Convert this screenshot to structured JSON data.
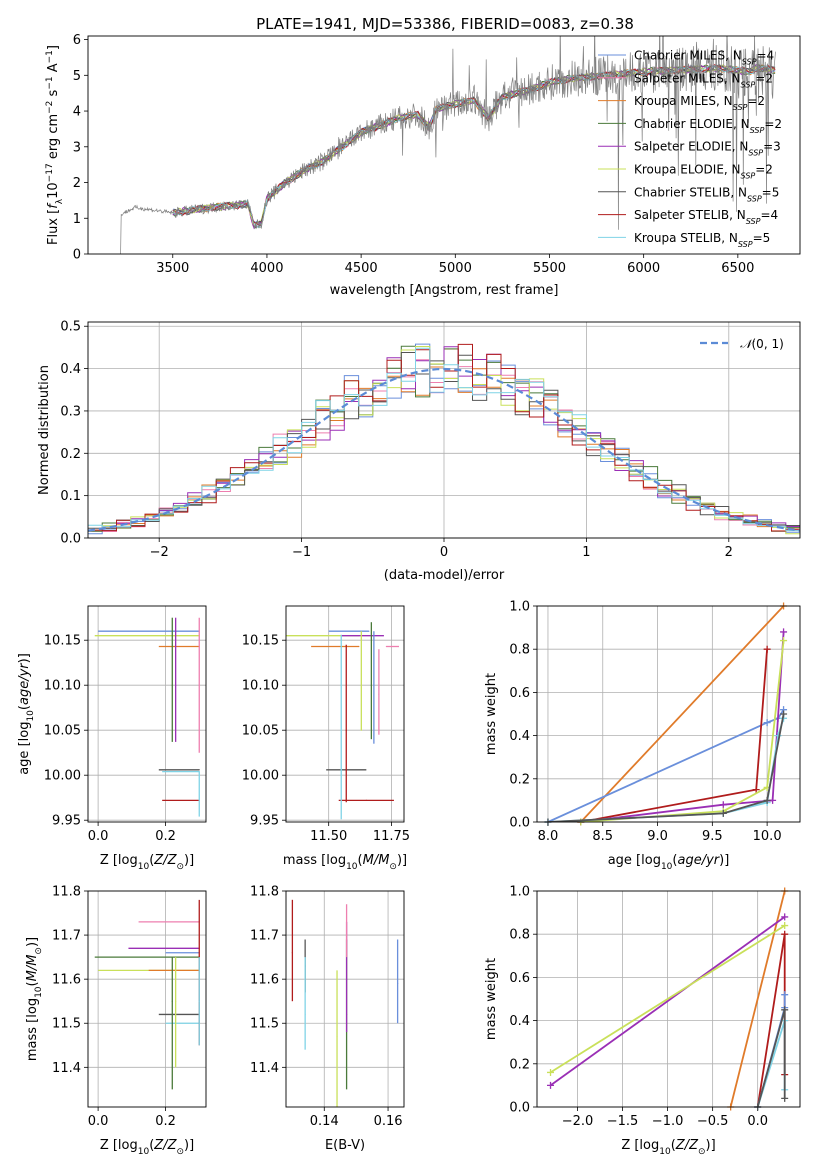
{
  "title": "PLATE=1941, MJD=53386, FIBERID=0083, z=0.38",
  "colors": {
    "Chabrier MILES": "#6a8fdb",
    "Salpeter MILES": "#ee7faf",
    "Kroupa MILES": "#e07b2a",
    "Chabrier ELODIE": "#4a7a3a",
    "Salpeter ELODIE": "#9a2fb5",
    "Kroupa ELODIE": "#c9e05a",
    "Chabrier STELIB": "#555555",
    "Salpeter STELIB": "#b01c1c",
    "Kroupa STELIB": "#7fd3e6",
    "data": "#808080",
    "normal": "#5b8bd6"
  },
  "chart_data": [
    {
      "type": "line",
      "id": "spectrum",
      "xlabel": "wavelength [Angstrom, rest frame]",
      "xlim": [
        3050,
        6830
      ],
      "ylim": [
        0,
        6.1
      ],
      "xticks": [
        3500,
        4000,
        4500,
        5000,
        5500,
        6000,
        6500
      ],
      "yticks": [
        0,
        1,
        2,
        3,
        4,
        5,
        6
      ],
      "legend": [
        {
          "name": "Chabrier MILES",
          "n": "4"
        },
        {
          "name": "Salpeter MILES",
          "n": "2"
        },
        {
          "name": "Kroupa MILES",
          "n": "2"
        },
        {
          "name": "Chabrier ELODIE",
          "n": "2"
        },
        {
          "name": "Salpeter ELODIE",
          "n": "3"
        },
        {
          "name": "Kroupa ELODIE",
          "n": "2"
        },
        {
          "name": "Chabrier STELIB",
          "n": "5"
        },
        {
          "name": "Salpeter STELIB",
          "n": "4"
        },
        {
          "name": "Kroupa STELIB",
          "n": "5"
        }
      ],
      "legend_position": "top-right",
      "model_continuum": [
        [
          3220,
          1.1
        ],
        [
          3300,
          1.3
        ],
        [
          3500,
          1.15
        ],
        [
          3700,
          1.3
        ],
        [
          3900,
          1.4
        ],
        [
          3930,
          0.8
        ],
        [
          3970,
          0.85
        ],
        [
          4000,
          1.55
        ],
        [
          4100,
          2.0
        ],
        [
          4200,
          2.35
        ],
        [
          4300,
          2.6
        ],
        [
          4400,
          3.0
        ],
        [
          4500,
          3.4
        ],
        [
          4600,
          3.6
        ],
        [
          4700,
          3.8
        ],
        [
          4800,
          3.9
        ],
        [
          4860,
          3.55
        ],
        [
          4900,
          4.05
        ],
        [
          5000,
          4.2
        ],
        [
          5100,
          4.3
        ],
        [
          5175,
          3.8
        ],
        [
          5250,
          4.4
        ],
        [
          5400,
          4.6
        ],
        [
          5500,
          4.8
        ],
        [
          5600,
          4.9
        ],
        [
          5800,
          5.0
        ],
        [
          5900,
          5.05
        ],
        [
          6000,
          5.1
        ],
        [
          6200,
          5.15
        ],
        [
          6400,
          5.2
        ],
        [
          6560,
          5.1
        ],
        [
          6600,
          5.2
        ],
        [
          6700,
          5.15
        ]
      ]
    },
    {
      "type": "line",
      "id": "residuals",
      "xlabel": "(data-model)/error",
      "ylabel": "Normed distribution",
      "xlim": [
        -2.5,
        2.5
      ],
      "ylim": [
        0,
        0.51
      ],
      "xticks": [
        -2,
        -1,
        0,
        1,
        2
      ],
      "yticks": [
        0.0,
        0.1,
        0.2,
        0.3,
        0.4,
        0.5
      ],
      "legend": [
        {
          "name": "N(0,1)"
        }
      ],
      "legend_position": "top-right",
      "bin_width": 0.1
    },
    {
      "type": "scatter",
      "id": "age-vs-Z",
      "xlabel": "Z [log10(Z/Z⊙)]",
      "ylabel": "age [log10(age/yr)]",
      "xlim": [
        -0.03,
        0.32
      ],
      "ylim": [
        9.948,
        10.188
      ],
      "xticks": [
        0.0,
        0.2
      ],
      "yticks": [
        9.95,
        10.0,
        10.05,
        10.1,
        10.15
      ],
      "points": [
        {
          "model": "Kroupa ELODIE",
          "x": 0.3,
          "y": 10.155,
          "xerr": [
            0.31,
            0.0
          ],
          "yerr": [
            0.0,
            0.0
          ]
        },
        {
          "model": "Kroupa MILES",
          "x": 0.3,
          "y": 10.143,
          "xerr": [
            0.12,
            0.0
          ],
          "yerr": [
            0.0,
            0.0
          ]
        },
        {
          "model": "Chabrier MILES",
          "x": 0.3,
          "y": 10.16,
          "xerr": [
            0.3,
            0.0
          ],
          "yerr": [
            0.0,
            0.0
          ]
        },
        {
          "model": "Chabrier ELODIE",
          "x": 0.22,
          "y": 10.1,
          "xerr": [
            0.0,
            0.0
          ],
          "yerr": [
            0.063,
            0.075
          ]
        },
        {
          "model": "Salpeter ELODIE",
          "x": 0.23,
          "y": 10.1,
          "xerr": [
            0.0,
            0.0
          ],
          "yerr": [
            0.063,
            0.075
          ]
        },
        {
          "model": "Salpeter MILES",
          "x": 0.3,
          "y": 10.1,
          "xerr": [
            0.0,
            0.0
          ],
          "yerr": [
            0.075,
            0.075
          ]
        },
        {
          "model": "Chabrier STELIB",
          "x": 0.3,
          "y": 10.006,
          "xerr": [
            0.12,
            0.0
          ],
          "yerr": [
            0.0,
            0.0
          ]
        },
        {
          "model": "Salpeter STELIB",
          "x": 0.3,
          "y": 9.972,
          "xerr": [
            0.11,
            0.0
          ],
          "yerr": [
            0.0,
            0.0
          ]
        },
        {
          "model": "Kroupa STELIB",
          "x": 0.3,
          "y": 10.004,
          "xerr": [
            0.11,
            0.0
          ],
          "yerr": [
            0.05,
            0.0
          ]
        }
      ]
    },
    {
      "type": "scatter",
      "id": "age-vs-mass",
      "xlabel": "mass [log10(M/M⊙)]",
      "xlim": [
        11.33,
        11.8
      ],
      "ylim": [
        9.948,
        10.188
      ],
      "xticks": [
        11.5,
        11.75
      ],
      "yticks": [
        9.95,
        10.0,
        10.05,
        10.1,
        10.15
      ],
      "points": [
        {
          "model": "Kroupa ELODIE",
          "x": 11.62,
          "y": 10.155,
          "xerr": [
            0.3,
            0.0
          ],
          "yerr": [
            0.0,
            0.0
          ]
        },
        {
          "model": "Salpeter MILES",
          "x": 11.73,
          "y": 10.143,
          "xerr": [
            0.0,
            0.05
          ],
          "yerr": [
            0.0,
            0.0
          ]
        },
        {
          "model": "Kroupa MILES",
          "x": 11.62,
          "y": 10.143,
          "xerr": [
            0.19,
            0.0
          ],
          "yerr": [
            0.0,
            0.0
          ]
        },
        {
          "model": "Chabrier MILES",
          "x": 11.66,
          "y": 10.16,
          "xerr": [
            0.16,
            0.0
          ],
          "yerr": [
            0.0,
            0.0
          ]
        },
        {
          "model": "Salpeter ELODIE",
          "x": 11.67,
          "y": 10.155,
          "xerr": [
            0.12,
            0.05
          ],
          "yerr": [
            0.0,
            0.0
          ]
        },
        {
          "model": "Chabrier STELIB",
          "x": 11.57,
          "y": 10.006,
          "xerr": [
            0.08,
            0.08
          ],
          "yerr": [
            0.0,
            0.0
          ]
        },
        {
          "model": "Salpeter STELIB",
          "x": 11.65,
          "y": 9.972,
          "xerr": [
            0.11,
            0.11
          ],
          "yerr": [
            0.0,
            0.0
          ]
        },
        {
          "model": "Kroupa STELIB",
          "x": 11.55,
          "y": 10.006,
          "xerr": [
            0.0,
            0.0
          ],
          "yerr": [
            0.055,
            0.15
          ]
        },
        {
          "model": "Salpeter STELIB",
          "x": 11.57,
          "y": 10.05,
          "xerr": [
            0.0,
            0.0
          ],
          "yerr": [
            0.08,
            0.095
          ]
        },
        {
          "model": "Kroupa ELODIE",
          "x": 11.63,
          "y": 10.05,
          "xerr": [
            0.0,
            0.0
          ],
          "yerr": [
            0.0,
            0.11
          ]
        },
        {
          "model": "Chabrier ELODIE",
          "x": 11.67,
          "y": 10.1,
          "xerr": [
            0.0,
            0.0
          ],
          "yerr": [
            0.06,
            0.07
          ]
        },
        {
          "model": "Chabrier MILES",
          "x": 11.68,
          "y": 10.1,
          "xerr": [
            0.0,
            0.0
          ],
          "yerr": [
            0.065,
            0.06
          ]
        },
        {
          "model": "Salpeter MILES",
          "x": 11.7,
          "y": 10.09,
          "xerr": [
            0.0,
            0.0
          ],
          "yerr": [
            0.045,
            0.05
          ]
        }
      ]
    },
    {
      "type": "line",
      "id": "mass-weight-vs-age",
      "xlabel": "age [log10(age/yr)]",
      "ylabel": "mass weight",
      "xlim": [
        7.9,
        10.3
      ],
      "ylim": [
        0,
        1.0
      ],
      "xticks": [
        8.0,
        8.5,
        9.0,
        9.5,
        10.0
      ],
      "yticks": [
        0.0,
        0.2,
        0.4,
        0.6,
        0.8,
        1.0
      ],
      "series": [
        {
          "model": "Kroupa MILES",
          "x": [
            8.3,
            10.15
          ],
          "y": [
            0.0,
            1.0
          ]
        },
        {
          "model": "Chabrier MILES",
          "x": [
            8.0,
            10.0,
            10.1,
            10.15
          ],
          "y": [
            0.0,
            0.46,
            0.48,
            0.52
          ]
        },
        {
          "model": "Salpeter STELIB",
          "x": [
            8.3,
            9.9,
            10.0
          ],
          "y": [
            0.0,
            0.15,
            0.8
          ]
        },
        {
          "model": "Salpeter ELODIE",
          "x": [
            8.3,
            9.6,
            10.05,
            10.15
          ],
          "y": [
            0.0,
            0.08,
            0.1,
            0.88
          ]
        },
        {
          "model": "Kroupa ELODIE",
          "x": [
            8.3,
            9.6,
            10.0,
            10.15
          ],
          "y": [
            0.0,
            0.05,
            0.16,
            0.84
          ]
        },
        {
          "model": "Kroupa STELIB",
          "x": [
            8.0,
            9.6,
            10.0,
            10.1,
            10.15
          ],
          "y": [
            0.0,
            0.04,
            0.09,
            0.4,
            0.48
          ]
        },
        {
          "model": "Chabrier STELIB",
          "x": [
            8.0,
            9.6,
            10.0,
            10.15
          ],
          "y": [
            0.0,
            0.04,
            0.1,
            0.5
          ]
        }
      ]
    },
    {
      "type": "scatter",
      "id": "mass-vs-Z",
      "xlabel": "Z [log10(Z/Z⊙)]",
      "ylabel": "mass [log10(M/M⊙)]",
      "xlim": [
        -0.03,
        0.32
      ],
      "ylim": [
        11.31,
        11.8
      ],
      "xticks": [
        0.0,
        0.2
      ],
      "yticks": [
        11.4,
        11.5,
        11.6,
        11.7,
        11.8
      ],
      "points": [
        {
          "model": "Salpeter MILES",
          "x": 0.3,
          "y": 11.73,
          "xerr": [
            0.18,
            0.0
          ],
          "yerr": [
            0.0,
            0.0
          ]
        },
        {
          "model": "Salpeter ELODIE",
          "x": 0.3,
          "y": 11.67,
          "xerr": [
            0.21,
            0.0
          ],
          "yerr": [
            0.0,
            0.0
          ]
        },
        {
          "model": "Chabrier MILES",
          "x": 0.3,
          "y": 11.66,
          "xerr": [
            0.1,
            0.0
          ],
          "yerr": [
            0.0,
            0.0
          ]
        },
        {
          "model": "Chabrier ELODIE",
          "x": 0.3,
          "y": 11.65,
          "xerr": [
            0.31,
            0.0
          ],
          "yerr": [
            0.0,
            0.0
          ]
        },
        {
          "model": "Kroupa ELODIE",
          "x": 0.3,
          "y": 11.62,
          "xerr": [
            0.3,
            0.0
          ],
          "yerr": [
            0.0,
            0.0
          ]
        },
        {
          "model": "Kroupa MILES",
          "x": 0.3,
          "y": 11.62,
          "xerr": [
            0.15,
            0.0
          ],
          "yerr": [
            0.0,
            0.0
          ]
        },
        {
          "model": "Chabrier STELIB",
          "x": 0.3,
          "y": 11.52,
          "xerr": [
            0.12,
            0.0
          ],
          "yerr": [
            0.0,
            0.0
          ]
        },
        {
          "model": "Kroupa STELIB",
          "x": 0.3,
          "y": 11.5,
          "xerr": [
            0.1,
            0.0
          ],
          "yerr": [
            0.0,
            0.0
          ]
        },
        {
          "model": "Chabrier ELODIE",
          "x": 0.22,
          "y": 11.55,
          "xerr": [
            0.0,
            0.0
          ],
          "yerr": [
            0.2,
            0.1
          ]
        },
        {
          "model": "Kroupa ELODIE",
          "x": 0.23,
          "y": 11.55,
          "xerr": [
            0.0,
            0.0
          ],
          "yerr": [
            0.15,
            0.1
          ]
        },
        {
          "model": "Salpeter STELIB",
          "x": 0.3,
          "y": 11.65,
          "xerr": [
            0.0,
            0.0
          ],
          "yerr": [
            0.2,
            0.13
          ]
        },
        {
          "model": "Kroupa STELIB",
          "x": 0.3,
          "y": 11.55,
          "xerr": [
            0.0,
            0.0
          ],
          "yerr": [
            0.1,
            0.1
          ]
        }
      ]
    },
    {
      "type": "scatter",
      "id": "mass-vs-ebv",
      "xlabel": "E(B-V)",
      "xlim": [
        0.128,
        0.165
      ],
      "ylim": [
        11.31,
        11.8
      ],
      "xticks": [
        0.14,
        0.16
      ],
      "yticks": [
        11.4,
        11.5,
        11.6,
        11.7,
        11.8
      ],
      "points": [
        {
          "model": "Salpeter STELIB",
          "x": 0.13,
          "y": 11.66,
          "xerr": [
            0,
            0
          ],
          "yerr": [
            0.11,
            0.12
          ]
        },
        {
          "model": "Chabrier STELIB",
          "x": 0.134,
          "y": 11.63,
          "xerr": [
            0,
            0
          ],
          "yerr": [
            0.06,
            0.06
          ]
        },
        {
          "model": "Kroupa STELIB",
          "x": 0.134,
          "y": 11.52,
          "xerr": [
            0,
            0
          ],
          "yerr": [
            0.08,
            0.13
          ]
        },
        {
          "model": "Kroupa ELODIE",
          "x": 0.144,
          "y": 11.47,
          "xerr": [
            0,
            0
          ],
          "yerr": [
            0.16,
            0.15
          ]
        },
        {
          "model": "Chabrier ELODIE",
          "x": 0.147,
          "y": 11.52,
          "xerr": [
            0,
            0
          ],
          "yerr": [
            0.17,
            0.17
          ]
        },
        {
          "model": "Salpeter ELODIE",
          "x": 0.147,
          "y": 11.6,
          "xerr": [
            0,
            0
          ],
          "yerr": [
            0.12,
            0.13
          ]
        },
        {
          "model": "Salpeter MILES",
          "x": 0.147,
          "y": 11.7,
          "xerr": [
            0,
            0
          ],
          "yerr": [
            0.05,
            0.07
          ]
        },
        {
          "model": "Chabrier MILES",
          "x": 0.163,
          "y": 11.59,
          "xerr": [
            0,
            0
          ],
          "yerr": [
            0.09,
            0.1
          ]
        }
      ]
    },
    {
      "type": "line",
      "id": "mass-weight-vs-Z",
      "xlabel": "Z [log10(Z/Z⊙)]",
      "ylabel": "mass weight",
      "xlim": [
        -2.45,
        0.47
      ],
      "ylim": [
        0,
        1.0
      ],
      "xticks": [
        -2.0,
        -1.5,
        -1.0,
        -0.5,
        0.0
      ],
      "yticks": [
        0.0,
        0.2,
        0.4,
        0.6,
        0.8,
        1.0
      ],
      "series": [
        {
          "model": "Kroupa MILES",
          "x": [
            -0.3,
            0.3
          ],
          "y": [
            0.0,
            1.0
          ]
        },
        {
          "model": "Salpeter ELODIE",
          "x": [
            -2.3,
            0.3
          ],
          "y": [
            0.1,
            0.88
          ]
        },
        {
          "model": "Kroupa ELODIE",
          "x": [
            -2.3,
            0.3
          ],
          "y": [
            0.16,
            0.84
          ]
        },
        {
          "model": "Salpeter STELIB",
          "x": [
            0.0,
            0.3,
            0.3
          ],
          "y": [
            0.0,
            0.8,
            0.15
          ]
        },
        {
          "model": "Chabrier MILES",
          "x": [
            0.0,
            0.3,
            0.3
          ],
          "y": [
            0.0,
            0.46,
            0.52
          ]
        },
        {
          "model": "Kroupa STELIB",
          "x": [
            0.0,
            0.3,
            0.3
          ],
          "y": [
            0.0,
            0.4,
            0.08
          ]
        },
        {
          "model": "Chabrier STELIB",
          "x": [
            0.0,
            0.3,
            0.3
          ],
          "y": [
            0.0,
            0.45,
            0.04
          ]
        }
      ]
    }
  ]
}
